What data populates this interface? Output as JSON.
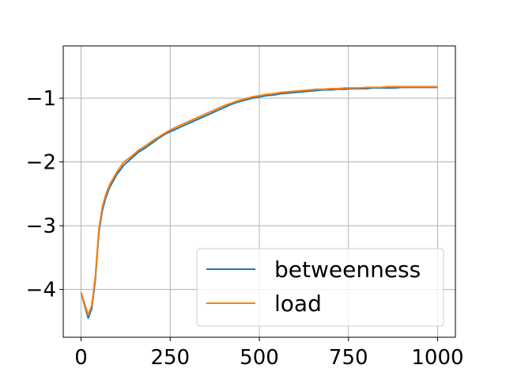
{
  "chart_data": {
    "type": "line",
    "title": "",
    "xlabel": "",
    "ylabel": "",
    "xlim": [
      -50,
      1050
    ],
    "ylim": [
      -4.75,
      -0.18
    ],
    "grid": true,
    "legend_position": "lower-right",
    "x_ticks": [
      {
        "value": 0,
        "label": "0"
      },
      {
        "value": 250,
        "label": "250"
      },
      {
        "value": 500,
        "label": "500"
      },
      {
        "value": 750,
        "label": "750"
      },
      {
        "value": 1000,
        "label": "1000"
      }
    ],
    "y_ticks": [
      {
        "value": -4,
        "label": "−4"
      },
      {
        "value": -3,
        "label": "−3"
      },
      {
        "value": -2,
        "label": "−2"
      },
      {
        "value": -1,
        "label": "−1"
      }
    ],
    "series": [
      {
        "name": "betweenness",
        "color": "#1f77b4",
        "x": [
          0,
          10,
          20,
          30,
          40,
          50,
          60,
          70,
          80,
          90,
          100,
          120,
          140,
          160,
          180,
          200,
          220,
          240,
          260,
          280,
          300,
          320,
          340,
          360,
          380,
          400,
          420,
          440,
          460,
          480,
          500,
          520,
          540,
          560,
          580,
          600,
          620,
          640,
          660,
          680,
          700,
          720,
          740,
          760,
          780,
          800,
          820,
          840,
          860,
          880,
          900,
          920,
          940,
          960,
          980,
          1000
        ],
        "values": [
          -4.05,
          -4.25,
          -4.45,
          -4.3,
          -3.85,
          -3.1,
          -2.75,
          -2.55,
          -2.4,
          -2.3,
          -2.2,
          -2.05,
          -1.95,
          -1.85,
          -1.78,
          -1.7,
          -1.62,
          -1.55,
          -1.5,
          -1.45,
          -1.4,
          -1.35,
          -1.3,
          -1.25,
          -1.2,
          -1.15,
          -1.1,
          -1.06,
          -1.03,
          -1.0,
          -0.98,
          -0.96,
          -0.95,
          -0.93,
          -0.92,
          -0.91,
          -0.9,
          -0.89,
          -0.88,
          -0.87,
          -0.87,
          -0.86,
          -0.86,
          -0.85,
          -0.85,
          -0.85,
          -0.84,
          -0.84,
          -0.84,
          -0.84,
          -0.83,
          -0.83,
          -0.83,
          -0.83,
          -0.83,
          -0.83
        ]
      },
      {
        "name": "load",
        "color": "#ff7f0e",
        "x": [
          0,
          10,
          20,
          30,
          40,
          50,
          60,
          70,
          80,
          90,
          100,
          120,
          140,
          160,
          180,
          200,
          220,
          240,
          260,
          280,
          300,
          320,
          340,
          360,
          380,
          400,
          420,
          440,
          460,
          480,
          500,
          520,
          540,
          560,
          580,
          600,
          620,
          640,
          660,
          680,
          700,
          720,
          740,
          760,
          780,
          800,
          820,
          840,
          860,
          880,
          900,
          920,
          940,
          960,
          980,
          1000
        ],
        "values": [
          -4.05,
          -4.22,
          -4.4,
          -4.25,
          -3.8,
          -3.05,
          -2.7,
          -2.5,
          -2.36,
          -2.26,
          -2.16,
          -2.0,
          -1.92,
          -1.82,
          -1.75,
          -1.67,
          -1.6,
          -1.53,
          -1.47,
          -1.42,
          -1.37,
          -1.32,
          -1.27,
          -1.22,
          -1.17,
          -1.12,
          -1.08,
          -1.04,
          -1.01,
          -0.98,
          -0.96,
          -0.94,
          -0.93,
          -0.91,
          -0.9,
          -0.89,
          -0.88,
          -0.87,
          -0.86,
          -0.86,
          -0.85,
          -0.85,
          -0.84,
          -0.84,
          -0.84,
          -0.83,
          -0.83,
          -0.83,
          -0.82,
          -0.82,
          -0.82,
          -0.82,
          -0.82,
          -0.82,
          -0.82,
          -0.82
        ]
      }
    ]
  }
}
